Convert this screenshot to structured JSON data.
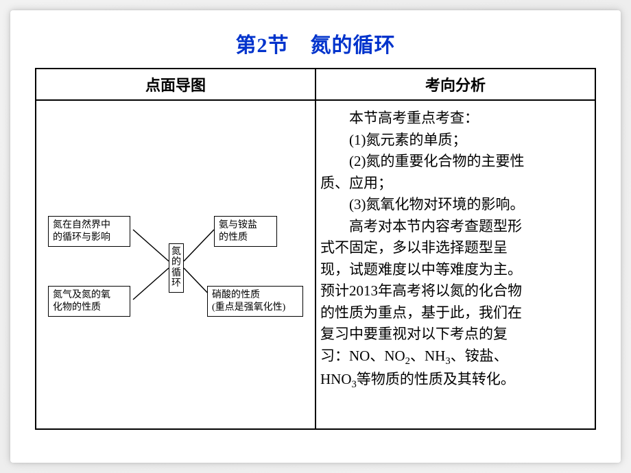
{
  "title_color": "#0033cc",
  "title": "第2节　氮的循环",
  "headers": {
    "left": "点面导图",
    "right": "考向分析"
  },
  "diagram": {
    "center": "氮的循环",
    "nodes": {
      "tl": "氮在自然界中\n的循环与影响",
      "bl": "氮气及氮的氧\n化物的性质",
      "tr": "氨与铵盐\n的性质",
      "br": "硝酸的性质\n(重点是强氧化性)"
    }
  },
  "analysis": {
    "l1": "本节高考重点考查：",
    "l2": "(1)氮元素的单质；",
    "l3a": "(2)氮的重要化合物的主要性",
    "l3b": "质、应用；",
    "l4": "(3)氮氧化物对环境的影响。",
    "l5a": "高考对本节内容考查题型形",
    "l5b": "式不固定，多以非选择题型呈",
    "l5c": "现，试题难度以中等难度为主。",
    "l5d": "预计2013年高考将以氮的化合物",
    "l5e": "的性质为重点，基于此，我们在",
    "l5f": "复习中要重视对以下考点的复",
    "l5g_pre": "习：NO、NO",
    "l5g_mid": "、NH",
    "l5g_post": "、铵盐、",
    "l5h_pre": "HNO",
    "l5h_post": "等物质的性质及其转化。",
    "sub2": "2",
    "sub3": "3"
  }
}
